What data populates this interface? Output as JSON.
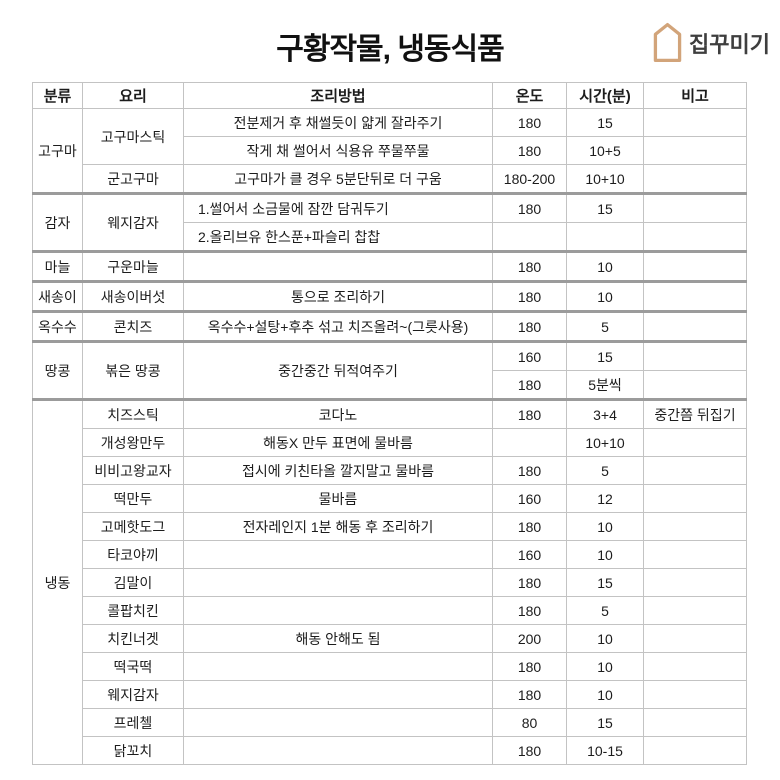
{
  "title": "구황작물, 냉동식품",
  "logo": {
    "text": "집꾸미기",
    "icon": "house-icon",
    "accent_color": "#d2a47a"
  },
  "table": {
    "headers": [
      "분류",
      "요리",
      "조리방법",
      "온도",
      "시간(분)",
      "비고"
    ],
    "rows": [
      {
        "cells": [
          {
            "col": "category",
            "t": "고구마",
            "rs": 3
          },
          {
            "col": "dish",
            "t": "고구마스틱",
            "rs": 2
          },
          {
            "col": "method",
            "t": "전분제거 후 채썰듯이 얇게 잘라주기"
          },
          {
            "col": "temp",
            "t": "180"
          },
          {
            "col": "time",
            "t": "15"
          },
          {
            "col": "note",
            "t": ""
          }
        ]
      },
      {
        "cells": [
          {
            "col": "method",
            "t": "작게 채 썰어서 식용유 쭈물쭈물"
          },
          {
            "col": "temp",
            "t": "180"
          },
          {
            "col": "time",
            "t": "10+5"
          },
          {
            "col": "note",
            "t": ""
          }
        ]
      },
      {
        "cells": [
          {
            "col": "dish",
            "t": "군고구마"
          },
          {
            "col": "method",
            "t": "고구마가 클 경우 5분단뒤로 더 구움"
          },
          {
            "col": "temp",
            "t": "180-200"
          },
          {
            "col": "time",
            "t": "10+10"
          },
          {
            "col": "note",
            "t": ""
          }
        ]
      },
      {
        "sep": true,
        "cells": [
          {
            "col": "category",
            "t": "감자",
            "rs": 2
          },
          {
            "col": "dish",
            "t": "웨지감자",
            "rs": 2
          },
          {
            "col": "method",
            "t": "1.썰어서 소금물에 잠깐 담궈두기",
            "align": "left"
          },
          {
            "col": "temp",
            "t": "180"
          },
          {
            "col": "time",
            "t": "15"
          },
          {
            "col": "note",
            "t": ""
          }
        ]
      },
      {
        "cells": [
          {
            "col": "method",
            "t": "2.올리브유 한스푼+파슬리 찹찹",
            "align": "left"
          },
          {
            "col": "temp",
            "t": ""
          },
          {
            "col": "time",
            "t": ""
          },
          {
            "col": "note",
            "t": ""
          }
        ]
      },
      {
        "sep": true,
        "cells": [
          {
            "col": "category",
            "t": "마늘"
          },
          {
            "col": "dish",
            "t": "구운마늘"
          },
          {
            "col": "method",
            "t": ""
          },
          {
            "col": "temp",
            "t": "180"
          },
          {
            "col": "time",
            "t": "10"
          },
          {
            "col": "note",
            "t": ""
          }
        ]
      },
      {
        "sep": true,
        "cells": [
          {
            "col": "category",
            "t": "새송이"
          },
          {
            "col": "dish",
            "t": "새송이버섯"
          },
          {
            "col": "method",
            "t": "통으로 조리하기"
          },
          {
            "col": "temp",
            "t": "180"
          },
          {
            "col": "time",
            "t": "10"
          },
          {
            "col": "note",
            "t": ""
          }
        ]
      },
      {
        "sep": true,
        "cells": [
          {
            "col": "category",
            "t": "옥수수"
          },
          {
            "col": "dish",
            "t": "콘치즈"
          },
          {
            "col": "method",
            "t": "옥수수+설탕+후추 섞고 치즈올려~(그릇사용)"
          },
          {
            "col": "temp",
            "t": "180"
          },
          {
            "col": "time",
            "t": "5"
          },
          {
            "col": "note",
            "t": ""
          }
        ]
      },
      {
        "sep": true,
        "cells": [
          {
            "col": "category",
            "t": "땅콩",
            "rs": 2
          },
          {
            "col": "dish",
            "t": "볶은 땅콩",
            "rs": 2
          },
          {
            "col": "method",
            "t": "중간중간 뒤적여주기",
            "rs": 2
          },
          {
            "col": "temp",
            "t": "160"
          },
          {
            "col": "time",
            "t": "15"
          },
          {
            "col": "note",
            "t": ""
          }
        ]
      },
      {
        "cells": [
          {
            "col": "temp",
            "t": "180"
          },
          {
            "col": "time",
            "t": "5분씩"
          },
          {
            "col": "note",
            "t": ""
          }
        ]
      },
      {
        "sep": true,
        "cells": [
          {
            "col": "category",
            "t": "냉동",
            "rs": 13
          },
          {
            "col": "dish",
            "t": "치즈스틱"
          },
          {
            "col": "method",
            "t": "코다노"
          },
          {
            "col": "temp",
            "t": "180"
          },
          {
            "col": "time",
            "t": "3+4"
          },
          {
            "col": "note",
            "t": "중간쯤 뒤집기"
          }
        ]
      },
      {
        "cells": [
          {
            "col": "dish",
            "t": "개성왕만두"
          },
          {
            "col": "method",
            "t": "해동X 만두 표면에 물바름"
          },
          {
            "col": "temp",
            "t": ""
          },
          {
            "col": "time",
            "t": "10+10"
          },
          {
            "col": "note",
            "t": ""
          }
        ]
      },
      {
        "cells": [
          {
            "col": "dish",
            "t": "비비고왕교자"
          },
          {
            "col": "method",
            "t": "접시에 키친타올 깔지말고 물바름"
          },
          {
            "col": "temp",
            "t": "180"
          },
          {
            "col": "time",
            "t": "5"
          },
          {
            "col": "note",
            "t": ""
          }
        ]
      },
      {
        "cells": [
          {
            "col": "dish",
            "t": "떡만두"
          },
          {
            "col": "method",
            "t": "물바름"
          },
          {
            "col": "temp",
            "t": "160"
          },
          {
            "col": "time",
            "t": "12"
          },
          {
            "col": "note",
            "t": ""
          }
        ]
      },
      {
        "cells": [
          {
            "col": "dish",
            "t": "고메핫도그"
          },
          {
            "col": "method",
            "t": "전자레인지 1분 해동 후 조리하기"
          },
          {
            "col": "temp",
            "t": "180"
          },
          {
            "col": "time",
            "t": "10"
          },
          {
            "col": "note",
            "t": ""
          }
        ]
      },
      {
        "cells": [
          {
            "col": "dish",
            "t": "타코야끼"
          },
          {
            "col": "method",
            "t": ""
          },
          {
            "col": "temp",
            "t": "160"
          },
          {
            "col": "time",
            "t": "10"
          },
          {
            "col": "note",
            "t": ""
          }
        ]
      },
      {
        "cells": [
          {
            "col": "dish",
            "t": "김말이"
          },
          {
            "col": "method",
            "t": ""
          },
          {
            "col": "temp",
            "t": "180"
          },
          {
            "col": "time",
            "t": "15"
          },
          {
            "col": "note",
            "t": ""
          }
        ]
      },
      {
        "cells": [
          {
            "col": "dish",
            "t": "콜팝치킨"
          },
          {
            "col": "method",
            "t": ""
          },
          {
            "col": "temp",
            "t": "180"
          },
          {
            "col": "time",
            "t": "5"
          },
          {
            "col": "note",
            "t": ""
          }
        ]
      },
      {
        "cells": [
          {
            "col": "dish",
            "t": "치킨너겟"
          },
          {
            "col": "method",
            "t": "해동 안해도 됨"
          },
          {
            "col": "temp",
            "t": "200"
          },
          {
            "col": "time",
            "t": "10"
          },
          {
            "col": "note",
            "t": ""
          }
        ]
      },
      {
        "cells": [
          {
            "col": "dish",
            "t": "떡국떡"
          },
          {
            "col": "method",
            "t": ""
          },
          {
            "col": "temp",
            "t": "180"
          },
          {
            "col": "time",
            "t": "10"
          },
          {
            "col": "note",
            "t": ""
          }
        ]
      },
      {
        "cells": [
          {
            "col": "dish",
            "t": "웨지감자"
          },
          {
            "col": "method",
            "t": ""
          },
          {
            "col": "temp",
            "t": "180"
          },
          {
            "col": "time",
            "t": "10"
          },
          {
            "col": "note",
            "t": ""
          }
        ]
      },
      {
        "cells": [
          {
            "col": "dish",
            "t": "프레첼"
          },
          {
            "col": "method",
            "t": ""
          },
          {
            "col": "temp",
            "t": "80"
          },
          {
            "col": "time",
            "t": "15"
          },
          {
            "col": "note",
            "t": ""
          }
        ]
      },
      {
        "cells": [
          {
            "col": "dish",
            "t": "닭꼬치"
          },
          {
            "col": "method",
            "t": ""
          },
          {
            "col": "temp",
            "t": "180"
          },
          {
            "col": "time",
            "t": "10-15"
          },
          {
            "col": "note",
            "t": ""
          }
        ]
      }
    ]
  }
}
